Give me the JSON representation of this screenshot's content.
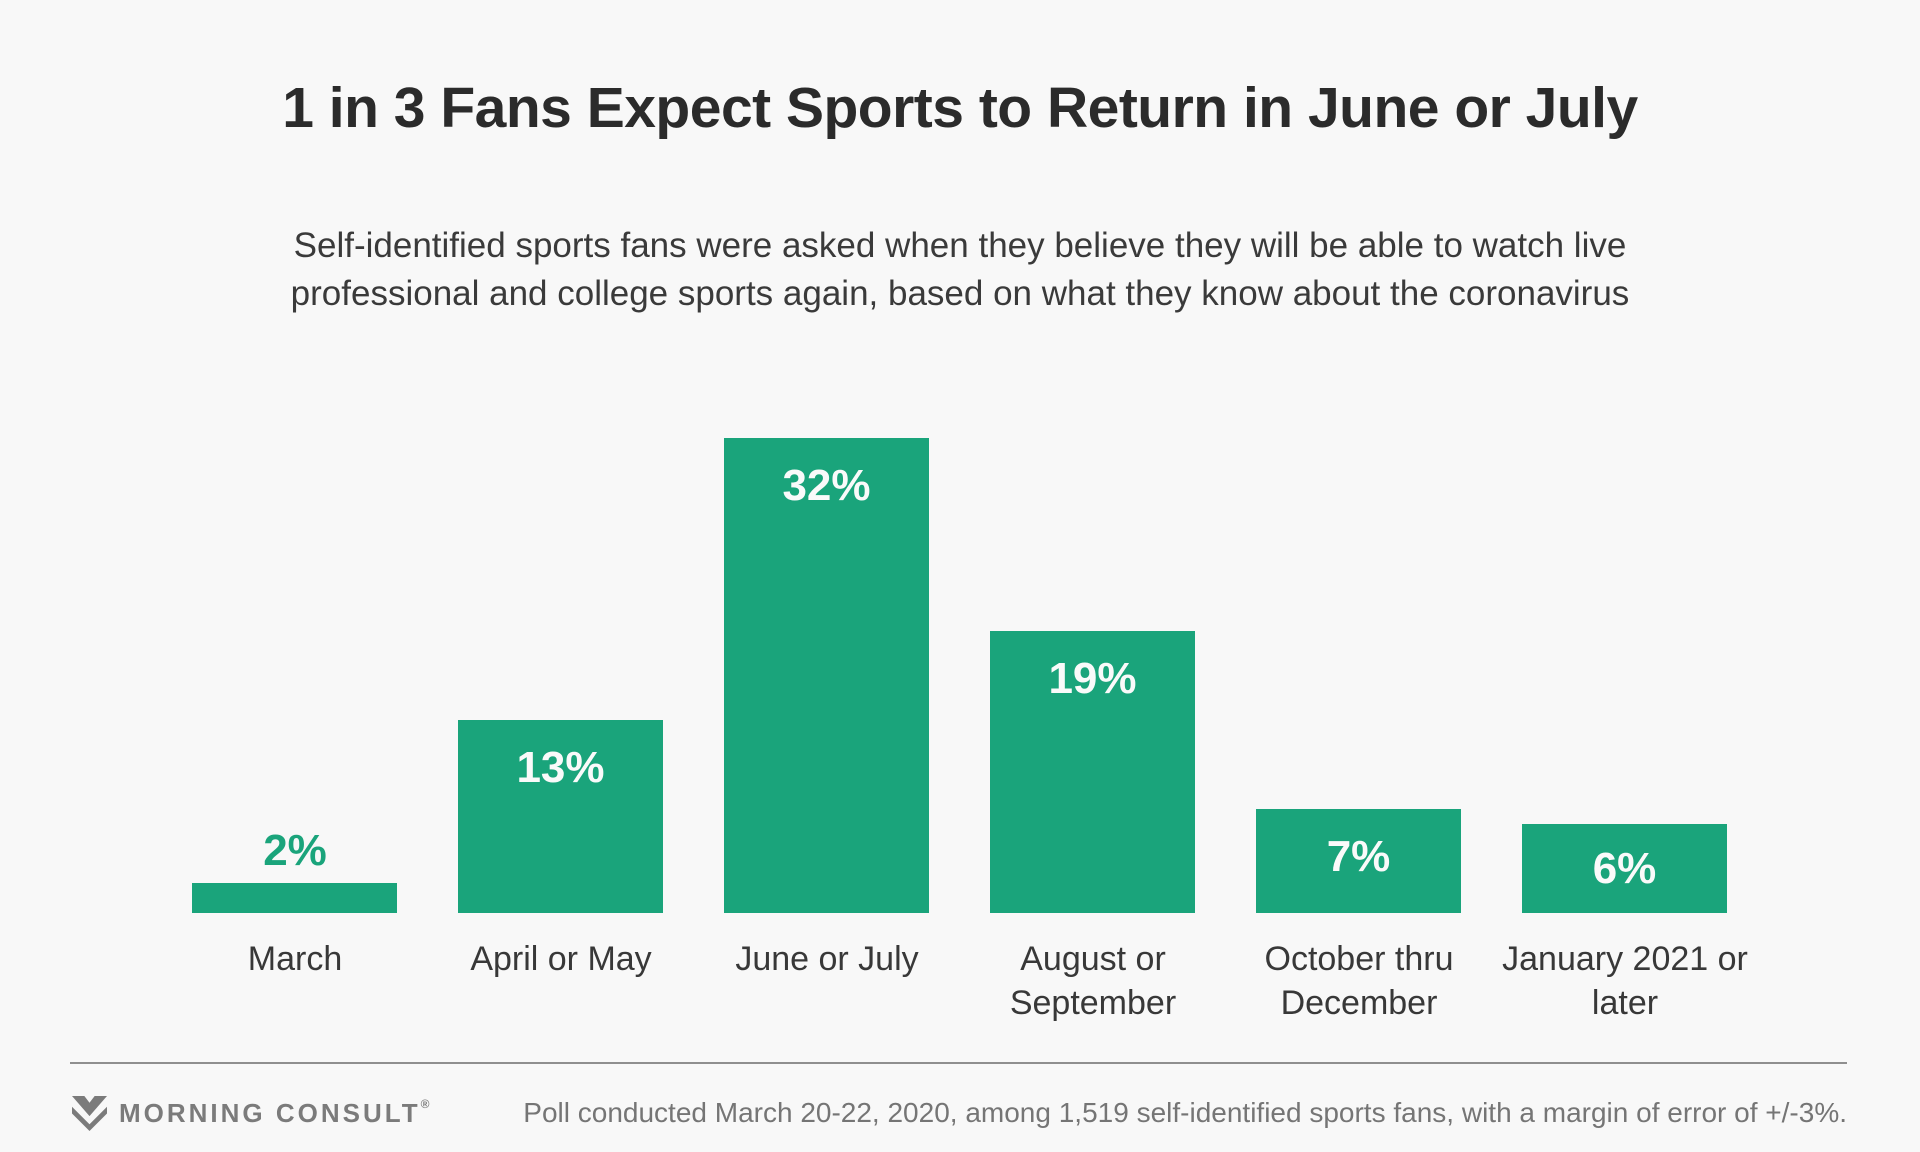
{
  "header": {
    "title": "1 in 3 Fans Expect Sports to Return in June or July",
    "subtitle_line1": "Self-identified sports fans were asked when they believe they will be able to watch live",
    "subtitle_line2": "professional and college sports again, based on what they know about the coronavirus"
  },
  "chart_data": {
    "type": "bar",
    "title": "1 in 3 Fans Expect Sports to Return in June or July",
    "categories": [
      "March",
      "April or May",
      "June or July",
      "August or September",
      "October thru December",
      "January 2021 or later"
    ],
    "category_lines": [
      [
        "March"
      ],
      [
        "April or May"
      ],
      [
        "June or July"
      ],
      [
        "August or",
        "September"
      ],
      [
        "October thru",
        "December"
      ],
      [
        "January 2021 or",
        "later"
      ]
    ],
    "values": [
      2,
      13,
      32,
      19,
      7,
      6
    ],
    "value_labels": [
      "2%",
      "13%",
      "32%",
      "19%",
      "7%",
      "6%"
    ],
    "xlabel": "",
    "ylabel": "",
    "ylim": [
      0,
      37
    ],
    "grid": false,
    "legend": false,
    "bar_color": "#1aa47b",
    "value_label_inside_color": "#fafafa",
    "value_label_outside_color": "#1aa47b"
  },
  "footer": {
    "brand": "MORNING CONSULT",
    "registered_mark": "®",
    "note": "Poll conducted March 20-22, 2020, among 1,519 self-identified sports fans, with a margin of error of +/-3%."
  },
  "colors": {
    "background": "#f8f8f8",
    "title": "#2b2b2b",
    "subtitle": "#3a3a3a",
    "bar": "#1aa47b",
    "category_label": "#383838",
    "divider": "#8f8f8f",
    "footer_gray": "#7b7b7b"
  }
}
